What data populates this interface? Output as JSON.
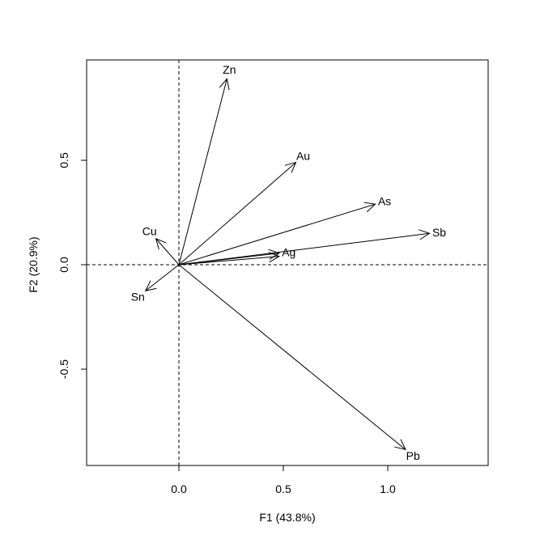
{
  "chart_data": {
    "type": "biplot-arrows",
    "xlabel": "F1 (43.8%)",
    "ylabel": "F2 (20.9%)",
    "xlim": [
      -0.44,
      1.48
    ],
    "ylim": [
      -0.96,
      0.98
    ],
    "xticks": [
      {
        "v": 0.0,
        "label": "0.0"
      },
      {
        "v": 0.5,
        "label": "0.5"
      },
      {
        "v": 1.0,
        "label": "1.0"
      }
    ],
    "yticks": [
      {
        "v": -0.5,
        "label": "-0.5"
      },
      {
        "v": 0.0,
        "label": "0.0"
      },
      {
        "v": 0.5,
        "label": "0.5"
      }
    ],
    "grid": false,
    "reference_lines": "dashed at x=0 and y=0",
    "color": "#000000",
    "arrows": [
      {
        "name": "Zn",
        "x": 0.23,
        "y": 0.89
      },
      {
        "name": "Au",
        "x": 0.56,
        "y": 0.49
      },
      {
        "name": "As",
        "x": 0.94,
        "y": 0.29
      },
      {
        "name": "Sb",
        "x": 1.2,
        "y": 0.15
      },
      {
        "name": "Ag",
        "x": 0.48,
        "y": 0.055
      },
      {
        "name": "",
        "x": 0.48,
        "y": 0.04
      },
      {
        "name": "Cu",
        "x": -0.11,
        "y": 0.125
      },
      {
        "name": "Sn",
        "x": -0.16,
        "y": -0.125
      },
      {
        "name": "Pb",
        "x": 1.085,
        "y": -0.885
      }
    ]
  }
}
